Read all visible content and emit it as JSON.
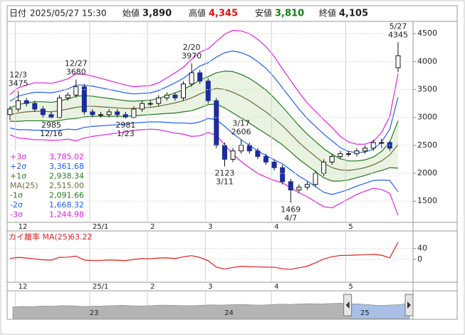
{
  "header": {
    "date_label": "日付",
    "date": "2025/05/27 15:30",
    "open_label": "始値",
    "open": "3,890",
    "high_label": "高値",
    "high": "4,345",
    "low_label": "安値",
    "low": "3,810",
    "close_label": "終値",
    "close": "4,105"
  },
  "chart_data": [
    {
      "type": "candlestick",
      "categories": [
        null,
        "12",
        null,
        null,
        null,
        null,
        null,
        null,
        null,
        null,
        "25/1",
        null,
        null,
        null,
        null,
        null,
        null,
        "2",
        null,
        null,
        null,
        null,
        null,
        null,
        "3",
        null,
        null,
        null,
        null,
        null,
        null,
        null,
        "4",
        null,
        null,
        null,
        null,
        null,
        null,
        null,
        null,
        "5",
        null,
        null,
        null,
        null,
        null,
        null
      ],
      "open": [
        3050,
        3150,
        3300,
        3250,
        3150,
        3050,
        3000,
        3350,
        3400,
        3550,
        3100,
        3050,
        3050,
        3100,
        3050,
        3000,
        3150,
        3250,
        3250,
        3350,
        3400,
        3350,
        3600,
        3800,
        3650,
        3300,
        2500,
        2250,
        2400,
        2500,
        2400,
        2300,
        2200,
        2100,
        1850,
        1700,
        1750,
        1800,
        2000,
        2200,
        2300,
        2350,
        2350,
        2400,
        2450,
        2550,
        2550,
        3890
      ],
      "high": [
        3200,
        3475,
        3350,
        3300,
        3200,
        3100,
        3400,
        3450,
        3680,
        3600,
        3150,
        3100,
        3150,
        3150,
        3100,
        3200,
        3300,
        3300,
        3400,
        3450,
        3450,
        3650,
        3970,
        3850,
        3700,
        3350,
        2550,
        2450,
        2606,
        2550,
        2450,
        2350,
        2250,
        2150,
        1900,
        1800,
        1850,
        2050,
        2250,
        2350,
        2400,
        2400,
        2450,
        2500,
        2600,
        2620,
        2580,
        4345
      ],
      "low": [
        2950,
        3100,
        3200,
        3100,
        3000,
        2985,
        2980,
        3300,
        3350,
        3050,
        3000,
        3000,
        3000,
        3000,
        2981,
        2980,
        3100,
        3200,
        3200,
        3300,
        3300,
        3300,
        3550,
        3600,
        3250,
        2450,
        2123,
        2200,
        2350,
        2350,
        2250,
        2150,
        2050,
        1800,
        1469,
        1650,
        1700,
        1750,
        1950,
        2150,
        2250,
        2300,
        2300,
        2350,
        2400,
        2450,
        2400,
        3810
      ],
      "close": [
        3150,
        3300,
        3250,
        3150,
        3050,
        3000,
        3350,
        3400,
        3550,
        3100,
        3050,
        3050,
        3100,
        3050,
        3000,
        3150,
        3250,
        3250,
        3350,
        3400,
        3350,
        3600,
        3800,
        3650,
        3300,
        2500,
        2250,
        2400,
        2500,
        2400,
        2300,
        2200,
        2100,
        1850,
        1700,
        1750,
        1800,
        2000,
        2200,
        2300,
        2350,
        2350,
        2400,
        2450,
        2550,
        2550,
        2450,
        4105
      ],
      "up_color": "#ffffff",
      "down_color": "#1c2c9c",
      "ylim": [
        1120,
        4720
      ],
      "yticks": [
        1500,
        2000,
        2500,
        3000,
        3500,
        4000,
        4500
      ],
      "grid": true,
      "legend": "bottom-left",
      "band_fill": {
        "color": "#eaf3e2",
        "between": [
          "+1σ",
          "-1σ"
        ]
      },
      "series": [
        {
          "name": "+3σ",
          "color": "#e020e0",
          "value_label": "3,785.02",
          "values": [
            3410,
            3530,
            3580,
            3620,
            3620,
            3610,
            3645,
            3690,
            3780,
            3770,
            3740,
            3700,
            3660,
            3620,
            3580,
            3550,
            3560,
            3570,
            3620,
            3710,
            3800,
            3900,
            4040,
            4170,
            4230,
            4360,
            4490,
            4560,
            4550,
            4500,
            4400,
            4270,
            4090,
            3870,
            3660,
            3450,
            3260,
            3110,
            2960,
            2820,
            2660,
            2560,
            2520,
            2520,
            2570,
            2730,
            3020,
            3785.02
          ]
        },
        {
          "name": "+2σ",
          "color": "#2060f0",
          "value_label": "3,361.68",
          "values": [
            3290,
            3380,
            3420,
            3450,
            3450,
            3440,
            3470,
            3510,
            3580,
            3580,
            3560,
            3530,
            3500,
            3470,
            3440,
            3420,
            3430,
            3440,
            3480,
            3550,
            3620,
            3700,
            3810,
            3920,
            3980,
            4080,
            4160,
            4190,
            4160,
            4100,
            4000,
            3880,
            3720,
            3530,
            3340,
            3150,
            2980,
            2840,
            2700,
            2580,
            2460,
            2390,
            2370,
            2380,
            2430,
            2560,
            2790,
            3361.68
          ]
        },
        {
          "name": "+1σ",
          "color": "#1f7a1f",
          "value_label": "2,938.34",
          "values": [
            3170,
            3230,
            3260,
            3280,
            3280,
            3270,
            3295,
            3330,
            3380,
            3390,
            3380,
            3360,
            3340,
            3320,
            3300,
            3290,
            3300,
            3310,
            3340,
            3390,
            3440,
            3500,
            3580,
            3670,
            3730,
            3800,
            3830,
            3820,
            3770,
            3700,
            3600,
            3490,
            3350,
            3190,
            3020,
            2850,
            2700,
            2570,
            2440,
            2340,
            2260,
            2220,
            2220,
            2240,
            2290,
            2390,
            2560,
            2938.34
          ]
        },
        {
          "name": "MA(25)",
          "color": "#6b6b3a",
          "value_label": "2,515.00",
          "values": [
            3050,
            3080,
            3100,
            3110,
            3110,
            3100,
            3120,
            3150,
            3180,
            3200,
            3200,
            3190,
            3180,
            3170,
            3160,
            3160,
            3170,
            3180,
            3200,
            3230,
            3260,
            3300,
            3350,
            3420,
            3480,
            3520,
            3500,
            3450,
            3380,
            3300,
            3200,
            3100,
            2980,
            2850,
            2700,
            2550,
            2420,
            2300,
            2180,
            2100,
            2060,
            2050,
            2070,
            2100,
            2150,
            2220,
            2330,
            2515
          ]
        },
        {
          "name": "-1σ",
          "color": "#1f7a1f",
          "value_label": "2,091.66",
          "values": [
            2930,
            2930,
            2940,
            2940,
            2940,
            2930,
            2945,
            2970,
            2980,
            3010,
            3020,
            3020,
            3020,
            3020,
            3020,
            3030,
            3040,
            3050,
            3060,
            3070,
            3080,
            3100,
            3120,
            3170,
            3230,
            3240,
            3170,
            3080,
            2990,
            2900,
            2800,
            2710,
            2610,
            2510,
            2380,
            2250,
            2140,
            2030,
            1920,
            1860,
            1860,
            1880,
            1920,
            1960,
            2010,
            2050,
            2100,
            2091.66
          ]
        },
        {
          "name": "-2σ",
          "color": "#2060f0",
          "value_label": "1,668.32",
          "values": [
            2810,
            2780,
            2780,
            2770,
            2770,
            2760,
            2770,
            2790,
            2780,
            2820,
            2840,
            2850,
            2860,
            2870,
            2880,
            2900,
            2910,
            2920,
            2920,
            2910,
            2900,
            2900,
            2890,
            2920,
            2980,
            2960,
            2840,
            2710,
            2600,
            2500,
            2400,
            2320,
            2240,
            2170,
            2060,
            1950,
            1860,
            1760,
            1660,
            1620,
            1660,
            1710,
            1770,
            1820,
            1870,
            1880,
            1870,
            1668.32
          ]
        },
        {
          "name": "-3σ",
          "color": "#e020e0",
          "value_label": "1,244.98",
          "values": [
            2690,
            2630,
            2620,
            2600,
            2600,
            2590,
            2595,
            2610,
            2580,
            2630,
            2660,
            2680,
            2700,
            2720,
            2740,
            2770,
            2780,
            2790,
            2780,
            2750,
            2720,
            2700,
            2660,
            2670,
            2730,
            2680,
            2510,
            2340,
            2210,
            2100,
            2000,
            1930,
            1870,
            1830,
            1740,
            1650,
            1580,
            1490,
            1400,
            1380,
            1460,
            1540,
            1620,
            1680,
            1730,
            1710,
            1640,
            1244.98
          ]
        }
      ],
      "annotations": [
        {
          "date": "12/3",
          "value": 3475,
          "kind": "high"
        },
        {
          "date": "12/27",
          "value": 3680,
          "kind": "high"
        },
        {
          "date": "2/20",
          "value": 3970,
          "kind": "high"
        },
        {
          "date": "3/17",
          "value": 2606,
          "kind": "high"
        },
        {
          "date": "5/27",
          "value": 4345,
          "kind": "high"
        },
        {
          "date": "12/16",
          "value": 2985,
          "kind": "low"
        },
        {
          "date": "1/23",
          "value": 2981,
          "kind": "low"
        },
        {
          "date": "3/11",
          "value": 2123,
          "kind": "low"
        },
        {
          "date": "4/7",
          "value": 1469,
          "kind": "low"
        }
      ]
    },
    {
      "type": "line",
      "title": "カイ離率 MA(25)",
      "value_label": "63.22",
      "color": "#e02020",
      "values": [
        3.3,
        7.1,
        4.8,
        1.3,
        -1.9,
        -3.2,
        7.4,
        7.9,
        11.6,
        -3.1,
        -4.7,
        -4.4,
        -2.5,
        -3.8,
        -5.1,
        -0.3,
        2.5,
        2.2,
        4.7,
        5.3,
        2.8,
        9.1,
        13.4,
        6.7,
        -5.2,
        -29.0,
        -35.7,
        -30.4,
        -26.0,
        -27.3,
        -28.1,
        -29.0,
        -29.5,
        -35.1,
        -37.0,
        -31.4,
        -25.6,
        -13.0,
        0.9,
        9.5,
        14.1,
        14.6,
        15.9,
        16.7,
        18.6,
        14.9,
        5.2,
        63.22
      ],
      "ylim": [
        -85,
        105
      ],
      "yticks": [
        0,
        40
      ],
      "grid": true
    },
    {
      "type": "area",
      "color": "#b4b4b4",
      "selection_color": "#a9bfe6",
      "values": [
        2600,
        2700,
        2650,
        2800,
        2750,
        2900,
        2850,
        2700,
        2750,
        2800,
        2900,
        2950,
        2850,
        2800,
        2900,
        3000,
        2950,
        2900,
        2850,
        2950,
        3050,
        3000,
        3100,
        3150,
        3050,
        3000,
        3100,
        3200,
        3150,
        3250,
        3300,
        3250,
        3350,
        3400,
        3300,
        3200,
        3050,
        2900,
        3000,
        3100,
        3400
      ],
      "xlim": [
        0,
        40
      ],
      "ylim": [
        0,
        6000
      ],
      "xticks": [
        {
          "value": 8.2,
          "label": "23"
        },
        {
          "value": 21.8,
          "label": "24"
        },
        {
          "value": 35.5,
          "label": "25"
        }
      ],
      "selection": [
        33.8,
        40
      ]
    }
  ]
}
